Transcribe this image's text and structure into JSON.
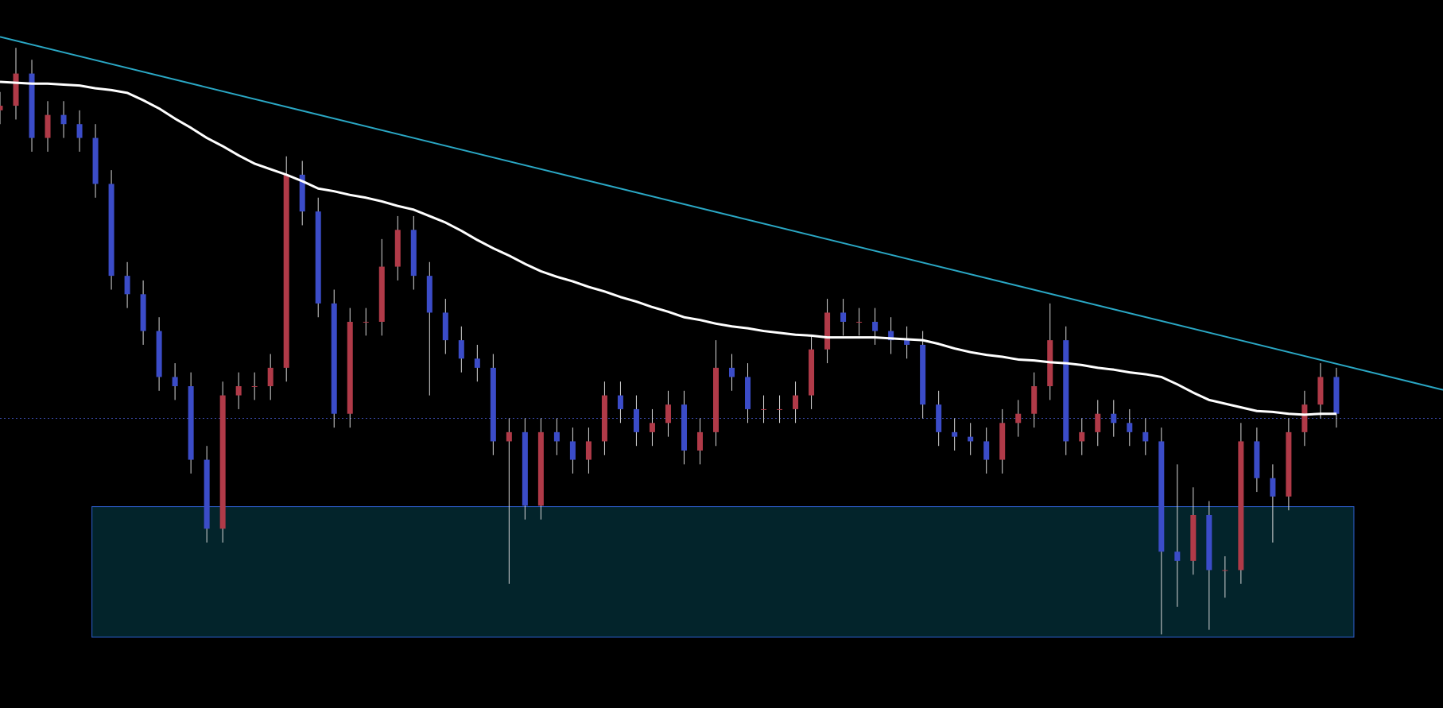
{
  "chart_data": {
    "type": "candlestick",
    "open": [
      650,
      655,
      690,
      620,
      645,
      635,
      620,
      570,
      470,
      450,
      410,
      360,
      350,
      270,
      195,
      340,
      350,
      350,
      370,
      580,
      540,
      440,
      320,
      420,
      420,
      480,
      520,
      470,
      430,
      400,
      380,
      370,
      290,
      300,
      220,
      300,
      290,
      270,
      290,
      340,
      325,
      300,
      310,
      330,
      280,
      300,
      370,
      360,
      325,
      325,
      325,
      340,
      390,
      430,
      420,
      420,
      410,
      400,
      395,
      330,
      300,
      295,
      290,
      270,
      310,
      320,
      350,
      400,
      290,
      300,
      320,
      310,
      300,
      290,
      170,
      160,
      210,
      150,
      150,
      290,
      250,
      230,
      300,
      330,
      360
    ],
    "high": [
      670,
      718,
      705,
      660,
      660,
      650,
      635,
      585,
      485,
      465,
      425,
      375,
      365,
      285,
      355,
      365,
      365,
      385,
      600,
      595,
      555,
      455,
      435,
      435,
      510,
      535,
      535,
      485,
      445,
      415,
      395,
      385,
      315,
      315,
      315,
      315,
      305,
      305,
      355,
      355,
      340,
      325,
      345,
      345,
      315,
      400,
      385,
      375,
      340,
      340,
      355,
      405,
      445,
      445,
      435,
      435,
      425,
      415,
      410,
      345,
      315,
      310,
      305,
      325,
      335,
      365,
      440,
      415,
      315,
      335,
      335,
      325,
      315,
      305,
      265,
      240,
      225,
      165,
      310,
      305,
      265,
      315,
      345,
      375,
      370
    ],
    "low": [
      635,
      640,
      605,
      605,
      620,
      605,
      555,
      455,
      435,
      395,
      345,
      335,
      255,
      180,
      180,
      325,
      335,
      335,
      355,
      525,
      425,
      305,
      305,
      405,
      405,
      465,
      455,
      340,
      385,
      365,
      355,
      275,
      135,
      205,
      205,
      275,
      255,
      255,
      275,
      310,
      285,
      285,
      295,
      265,
      265,
      285,
      345,
      310,
      310,
      310,
      310,
      325,
      375,
      405,
      405,
      395,
      385,
      380,
      315,
      285,
      280,
      275,
      255,
      255,
      295,
      305,
      335,
      275,
      275,
      285,
      295,
      285,
      275,
      80,
      110,
      145,
      85,
      120,
      135,
      235,
      180,
      215,
      285,
      315,
      305
    ],
    "close": [
      655,
      690,
      620,
      645,
      635,
      620,
      570,
      470,
      450,
      410,
      360,
      350,
      270,
      195,
      340,
      350,
      350,
      370,
      580,
      540,
      440,
      320,
      420,
      420,
      480,
      520,
      470,
      430,
      400,
      380,
      370,
      290,
      300,
      220,
      300,
      290,
      270,
      290,
      340,
      325,
      300,
      310,
      330,
      280,
      300,
      370,
      360,
      325,
      325,
      325,
      340,
      390,
      430,
      420,
      420,
      410,
      400,
      395,
      330,
      300,
      295,
      290,
      270,
      310,
      320,
      350,
      400,
      290,
      300,
      320,
      310,
      300,
      290,
      170,
      160,
      210,
      150,
      150,
      290,
      250,
      230,
      300,
      330,
      360,
      320
    ],
    "up_color": "#b03a48",
    "down_color": "#3b4cc8",
    "wick_color": "#d8d8d8",
    "moving_average": {
      "color": "#ffffff",
      "values": [
        681,
        680,
        679,
        679,
        678,
        677,
        674,
        672,
        669,
        661,
        652,
        641,
        631,
        620,
        611,
        601,
        592,
        586,
        580,
        573,
        565,
        562,
        558,
        555,
        551,
        546,
        542,
        535,
        528,
        519,
        509,
        500,
        492,
        483,
        475,
        469,
        464,
        458,
        453,
        447,
        442,
        436,
        431,
        425,
        422,
        418,
        415,
        413,
        410,
        408,
        406,
        405,
        403,
        403,
        403,
        403,
        402,
        401,
        400,
        396,
        391,
        387,
        384,
        382,
        379,
        378,
        376,
        375,
        373,
        370,
        368,
        365,
        363,
        360,
        352,
        343,
        335,
        331,
        327,
        323,
        322,
        320,
        319,
        320,
        320
      ]
    },
    "trendline": {
      "color": "#2aa7c4",
      "x": [
        0,
        90.7
      ],
      "y": [
        730,
        346
      ]
    },
    "zone": {
      "fill": "#03242b",
      "stroke": "#2f5fd0",
      "x": [
        5.78,
        85.1
      ],
      "y": [
        77,
        219
      ]
    },
    "level": {
      "value": 315,
      "color": "#3a4aa8"
    },
    "xlim": [
      0,
      90.7
    ],
    "ylim": [
      0,
      770
    ],
    "background": "#000000"
  }
}
